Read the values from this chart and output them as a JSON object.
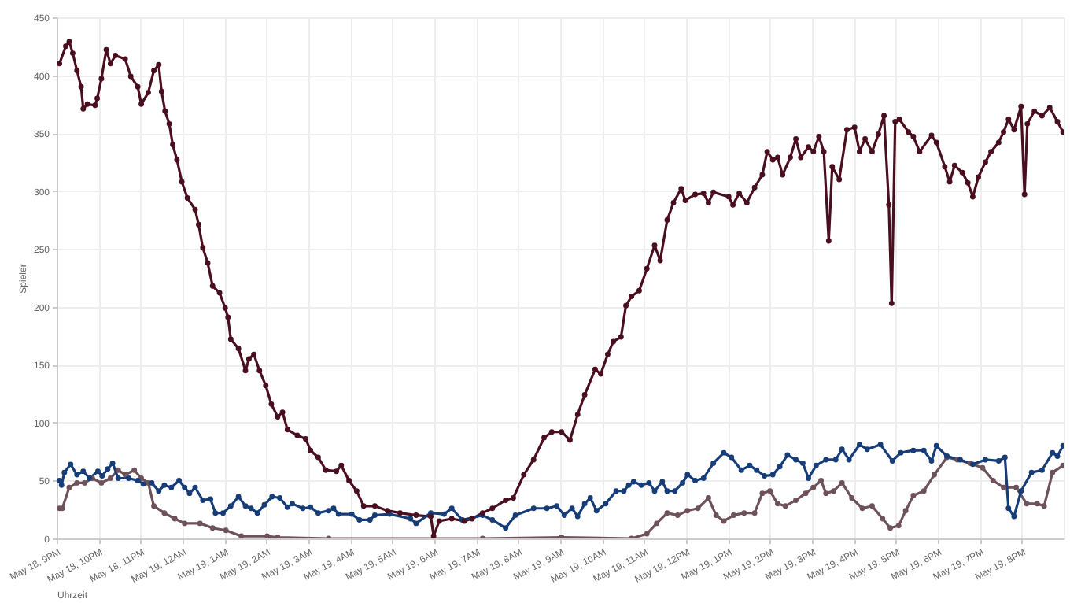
{
  "chart_data": {
    "type": "line",
    "xlabel": "Uhrzeit",
    "ylabel": "Spieler",
    "grid": true,
    "marker": "circle",
    "line_style": "solid",
    "xlim": [
      "--05-18T21:00",
      "--05-19T21:00"
    ],
    "ylim": [
      0,
      450
    ],
    "yticks": [
      0,
      50,
      100,
      150,
      200,
      250,
      300,
      350,
      400,
      450
    ],
    "xticks": [
      {
        "value": "--05-18T21:00",
        "label": "May 18, 9PM"
      },
      {
        "value": "--05-18T22:00",
        "label": "May 18, 10PM"
      },
      {
        "value": "--05-18T23:00",
        "label": "May 18, 11PM"
      },
      {
        "value": "--05-19T00:00",
        "label": "May 19, 12AM"
      },
      {
        "value": "--05-19T01:00",
        "label": "May 19, 1AM"
      },
      {
        "value": "--05-19T02:00",
        "label": "May 19, 2AM"
      },
      {
        "value": "--05-19T03:00",
        "label": "May 19, 3AM"
      },
      {
        "value": "--05-19T04:00",
        "label": "May 19, 4AM"
      },
      {
        "value": "--05-19T05:00",
        "label": "May 19, 5AM"
      },
      {
        "value": "--05-19T06:00",
        "label": "May 19, 6AM"
      },
      {
        "value": "--05-19T07:00",
        "label": "May 19, 7AM"
      },
      {
        "value": "--05-19T08:00",
        "label": "May 19, 8AM"
      },
      {
        "value": "--05-19T09:00",
        "label": "May 19, 9AM"
      },
      {
        "value": "--05-19T10:00",
        "label": "May 19, 10AM"
      },
      {
        "value": "--05-19T11:00",
        "label": "May 19, 11AM"
      },
      {
        "value": "--05-19T12:00",
        "label": "May 19, 12PM"
      },
      {
        "value": "--05-19T13:00",
        "label": "May 19, 1PM"
      },
      {
        "value": "--05-19T14:00",
        "label": "May 19, 2PM"
      },
      {
        "value": "--05-19T15:00",
        "label": "May 19, 3PM"
      },
      {
        "value": "--05-19T16:00",
        "label": "May 19, 4PM"
      },
      {
        "value": "--05-19T17:00",
        "label": "May 19, 5PM"
      },
      {
        "value": "--05-19T18:00",
        "label": "May 19, 6PM"
      },
      {
        "value": "--05-19T19:00",
        "label": "May 19, 7PM"
      },
      {
        "value": "--05-19T20:00",
        "label": "May 19, 8PM"
      }
    ],
    "series": [
      {
        "color": "#4a0f1f",
        "x": [
          "--05-18T21:04",
          "--05-18T21:13",
          "--05-18T21:18",
          "--05-18T21:23",
          "--05-18T21:29",
          "--05-18T21:35",
          "--05-18T21:38",
          "--05-18T21:44",
          "--05-18T21:55",
          "--05-18T21:58",
          "--05-18T22:04",
          "--05-18T22:11",
          "--05-18T22:17",
          "--05-18T22:24",
          "--05-18T22:38",
          "--05-18T22:46",
          "--05-18T22:56",
          "--05-18T23:01",
          "--05-18T23:11",
          "--05-18T23:19",
          "--05-18T23:26",
          "--05-18T23:30",
          "--05-18T23:35",
          "--05-18T23:41",
          "--05-18T23:46",
          "--05-18T23:52",
          "--05-18T23:59",
          "--05-19T00:07",
          "--05-19T00:18",
          "--05-19T00:23",
          "--05-19T00:29",
          "--05-19T00:36",
          "--05-19T00:43",
          "--05-19T00:53",
          "--05-19T01:01",
          "--05-19T01:05",
          "--05-19T01:09",
          "--05-19T01:20",
          "--05-19T01:30",
          "--05-19T01:35",
          "--05-19T01:42",
          "--05-19T01:50",
          "--05-19T01:59",
          "--05-19T02:07",
          "--05-19T02:16",
          "--05-19T02:23",
          "--05-19T02:30",
          "--05-19T02:44",
          "--05-19T02:56",
          "--05-19T03:03",
          "--05-19T03:14",
          "--05-19T03:25",
          "--05-19T03:40",
          "--05-19T03:47",
          "--05-19T03:58",
          "--05-19T04:09",
          "--05-19T04:19",
          "--05-19T04:35",
          "--05-19T04:53",
          "--05-19T05:11",
          "--05-19T05:34",
          "--05-19T05:55",
          "--05-19T05:59",
          "--05-19T06:07",
          "--05-19T06:25",
          "--05-19T06:43",
          "--05-19T06:54",
          "--05-19T07:09",
          "--05-19T07:23",
          "--05-19T07:42",
          "--05-19T07:53",
          "--05-19T08:08",
          "--05-19T08:22",
          "--05-19T08:37",
          "--05-19T08:48",
          "--05-19T09:02",
          "--05-19T09:14",
          "--05-19T09:25",
          "--05-19T09:35",
          "--05-19T09:50",
          "--05-19T09:58",
          "--05-19T10:08",
          "--05-19T10:16",
          "--05-19T10:27",
          "--05-19T10:34",
          "--05-19T10:42",
          "--05-19T10:53",
          "--05-19T11:04",
          "--05-19T11:15",
          "--05-19T11:23",
          "--05-19T11:33",
          "--05-19T11:42",
          "--05-19T11:53",
          "--05-19T11:59",
          "--05-19T12:13",
          "--05-19T12:25",
          "--05-19T12:32",
          "--05-19T12:39",
          "--05-19T13:01",
          "--05-19T13:07",
          "--05-19T13:16",
          "--05-19T13:27",
          "--05-19T13:38",
          "--05-19T13:49",
          "--05-19T13:56",
          "--05-19T14:04",
          "--05-19T14:11",
          "--05-19T14:18",
          "--05-19T14:29",
          "--05-19T14:37",
          "--05-19T14:44",
          "--05-19T14:55",
          "--05-19T15:02",
          "--05-19T15:10",
          "--05-19T15:17",
          "--05-19T15:24",
          "--05-19T15:29",
          "--05-19T15:39",
          "--05-19T15:50",
          "--05-19T16:01",
          "--05-19T16:08",
          "--05-19T16:16",
          "--05-19T16:26",
          "--05-19T16:35",
          "--05-19T16:43",
          "--05-19T16:50",
          "--05-19T16:54",
          "--05-19T16:59",
          "--05-19T17:05",
          "--05-19T17:18",
          "--05-19T17:25",
          "--05-19T17:34",
          "--05-19T17:51",
          "--05-19T17:58",
          "--05-19T18:10",
          "--05-19T18:17",
          "--05-19T18:24",
          "--05-19T18:35",
          "--05-19T18:43",
          "--05-19T18:50",
          "--05-19T18:58",
          "--05-19T19:08",
          "--05-19T19:16",
          "--05-19T19:27",
          "--05-19T19:34",
          "--05-19T19:41",
          "--05-19T19:49",
          "--05-19T19:59",
          "--05-19T20:04",
          "--05-19T20:08",
          "--05-19T20:18",
          "--05-19T20:29",
          "--05-19T20:40",
          "--05-19T20:51",
          "--05-19T20:59"
        ],
        "values": [
          410,
          425,
          429,
          419,
          404,
          390,
          371,
          375,
          374,
          380,
          397,
          422,
          410,
          417,
          414,
          399,
          390,
          375,
          385,
          404,
          409,
          386,
          369,
          358,
          340,
          327,
          308,
          294,
          284,
          271,
          251,
          238,
          218,
          212,
          199,
          191,
          172,
          164,
          145,
          155,
          159,
          145,
          132,
          116,
          105,
          109,
          94,
          89,
          86,
          76,
          70,
          59,
          58,
          63,
          50,
          41,
          28,
          28,
          24,
          22,
          20,
          19,
          2,
          15,
          17,
          15,
          17,
          22,
          26,
          33,
          35,
          55,
          68,
          87,
          92,
          92,
          85,
          107,
          124,
          146,
          142,
          159,
          170,
          174,
          201,
          209,
          214,
          233,
          253,
          240,
          275,
          290,
          302,
          292,
          297,
          298,
          290,
          299,
          295,
          288,
          298,
          290,
          303,
          314,
          334,
          327,
          329,
          314,
          329,
          345,
          329,
          338,
          334,
          347,
          334,
          257,
          321,
          310,
          353,
          355,
          334,
          345,
          334,
          349,
          365,
          288,
          203,
          360,
          362,
          351,
          347,
          334,
          348,
          342,
          321,
          308,
          322,
          316,
          307,
          295,
          312,
          325,
          334,
          342,
          351,
          362,
          353,
          373,
          297,
          358,
          369,
          365,
          372,
          360,
          351
        ]
      },
      {
        "color": "#6e5259",
        "x": [
          "--05-18T21:04",
          "--05-18T21:08",
          "--05-18T21:18",
          "--05-18T21:29",
          "--05-18T21:40",
          "--05-18T21:51",
          "--05-18T22:04",
          "--05-18T22:17",
          "--05-18T22:28",
          "--05-18T22:38",
          "--05-18T22:51",
          "--05-18T23:01",
          "--05-18T23:11",
          "--05-18T23:19",
          "--05-18T23:34",
          "--05-18T23:49",
          "--05-19T00:03",
          "--05-19T00:25",
          "--05-19T00:43",
          "--05-19T01:02",
          "--05-19T01:24",
          "--05-19T02:01",
          "--05-19T02:16",
          "--05-19T03:29",
          "--05-19T07:09",
          "--05-19T09:02",
          "--05-19T10:42",
          "--05-19T11:04",
          "--05-19T11:18",
          "--05-19T11:33",
          "--05-19T11:48",
          "--05-19T12:02",
          "--05-19T12:17",
          "--05-19T12:32",
          "--05-19T12:43",
          "--05-19T12:54",
          "--05-19T13:08",
          "--05-19T13:23",
          "--05-19T13:38",
          "--05-19T13:49",
          "--05-19T14:00",
          "--05-19T14:11",
          "--05-19T14:22",
          "--05-19T14:37",
          "--05-19T14:51",
          "--05-19T15:02",
          "--05-19T15:13",
          "--05-19T15:20",
          "--05-19T15:31",
          "--05-19T15:43",
          "--05-19T15:57",
          "--05-19T16:12",
          "--05-19T16:26",
          "--05-19T16:41",
          "--05-19T16:52",
          "--05-19T17:04",
          "--05-19T17:14",
          "--05-19T17:25",
          "--05-19T17:40",
          "--05-19T17:55",
          "--05-19T18:13",
          "--05-19T18:28",
          "--05-19T18:46",
          "--05-19T19:04",
          "--05-19T19:19",
          "--05-19T19:34",
          "--05-19T19:52",
          "--05-19T20:07",
          "--05-19T20:22",
          "--05-19T20:32",
          "--05-19T20:44",
          "--05-19T20:59"
        ],
        "values": [
          26,
          26,
          44,
          48,
          48,
          52,
          48,
          52,
          59,
          55,
          59,
          52,
          48,
          28,
          22,
          17,
          13,
          13,
          9,
          7,
          2,
          2,
          1,
          0,
          0,
          1,
          0,
          4,
          13,
          22,
          20,
          24,
          26,
          35,
          20,
          15,
          20,
          22,
          22,
          39,
          41,
          30,
          28,
          33,
          39,
          44,
          50,
          39,
          41,
          48,
          35,
          26,
          28,
          17,
          9,
          11,
          24,
          37,
          41,
          55,
          70,
          68,
          65,
          61,
          50,
          44,
          44,
          30,
          30,
          28,
          57,
          63
        ]
      },
      {
        "color": "#173d78",
        "x": [
          "--05-18T21:04",
          "--05-18T21:07",
          "--05-18T21:11",
          "--05-18T21:20",
          "--05-18T21:29",
          "--05-18T21:38",
          "--05-18T21:47",
          "--05-18T21:59",
          "--05-18T22:05",
          "--05-18T22:13",
          "--05-18T22:20",
          "--05-18T22:28",
          "--05-18T22:43",
          "--05-18T22:56",
          "--05-18T23:04",
          "--05-18T23:16",
          "--05-18T23:26",
          "--05-18T23:34",
          "--05-18T23:44",
          "--05-18T23:55",
          "--05-19T00:03",
          "--05-19T00:10",
          "--05-19T00:18",
          "--05-19T00:29",
          "--05-19T00:40",
          "--05-19T00:47",
          "--05-19T00:58",
          "--05-19T01:09",
          "--05-19T01:20",
          "--05-19T01:30",
          "--05-19T01:38",
          "--05-19T01:47",
          "--05-19T01:57",
          "--05-19T02:08",
          "--05-19T02:19",
          "--05-19T02:30",
          "--05-19T02:37",
          "--05-19T02:52",
          "--05-19T03:03",
          "--05-19T03:14",
          "--05-19T03:29",
          "--05-19T03:36",
          "--05-19T03:43",
          "--05-19T04:02",
          "--05-19T04:13",
          "--05-19T04:28",
          "--05-19T04:35",
          "--05-19T04:56",
          "--05-19T05:26",
          "--05-19T05:34",
          "--05-19T05:55",
          "--05-19T06:14",
          "--05-19T06:25",
          "--05-19T06:40",
          "--05-19T07:09",
          "--05-19T07:23",
          "--05-19T07:42",
          "--05-19T07:56",
          "--05-19T08:22",
          "--05-19T08:41",
          "--05-19T08:55",
          "--05-19T09:06",
          "--05-19T09:17",
          "--05-19T09:25",
          "--05-19T09:35",
          "--05-19T09:43",
          "--05-19T09:52",
          "--05-19T10:05",
          "--05-19T10:20",
          "--05-19T10:31",
          "--05-19T10:38",
          "--05-19T10:45",
          "--05-19T10:56",
          "--05-19T11:07",
          "--05-19T11:15",
          "--05-19T11:26",
          "--05-19T11:33",
          "--05-19T11:44",
          "--05-19T11:55",
          "--05-19T12:02",
          "--05-19T12:13",
          "--05-19T12:25",
          "--05-19T12:39",
          "--05-19T12:54",
          "--05-19T13:05",
          "--05-19T13:19",
          "--05-19T13:31",
          "--05-19T13:41",
          "--05-19T13:52",
          "--05-19T14:04",
          "--05-19T14:14",
          "--05-19T14:25",
          "--05-19T14:37",
          "--05-19T14:47",
          "--05-19T14:55",
          "--05-19T15:06",
          "--05-19T15:20",
          "--05-19T15:34",
          "--05-19T15:43",
          "--05-19T15:53",
          "--05-19T16:08",
          "--05-19T16:19",
          "--05-19T16:38",
          "--05-19T16:55",
          "--05-19T17:07",
          "--05-19T17:25",
          "--05-19T17:40",
          "--05-19T17:51",
          "--05-19T17:58",
          "--05-19T18:13",
          "--05-19T18:32",
          "--05-19T18:50",
          "--05-19T19:08",
          "--05-19T19:27",
          "--05-19T19:36",
          "--05-19T19:41",
          "--05-19T19:49",
          "--05-19T19:59",
          "--05-19T20:14",
          "--05-19T20:29",
          "--05-19T20:44",
          "--05-19T20:51",
          "--05-19T20:59"
        ],
        "values": [
          50,
          46,
          57,
          64,
          55,
          58,
          52,
          58,
          54,
          60,
          65,
          52,
          52,
          50,
          47,
          48,
          41,
          46,
          44,
          50,
          44,
          39,
          44,
          33,
          34,
          22,
          22,
          28,
          36,
          28,
          26,
          22,
          29,
          36,
          35,
          27,
          30,
          26,
          27,
          22,
          24,
          26,
          21,
          21,
          16,
          16,
          20,
          21,
          17,
          13,
          22,
          21,
          26,
          16,
          20,
          16,
          9,
          20,
          26,
          26,
          28,
          20,
          26,
          19,
          30,
          35,
          24,
          30,
          41,
          41,
          46,
          49,
          46,
          48,
          41,
          49,
          41,
          41,
          48,
          55,
          50,
          52,
          65,
          74,
          70,
          59,
          63,
          59,
          54,
          55,
          62,
          72,
          68,
          65,
          52,
          63,
          68,
          68,
          77,
          68,
          81,
          77,
          81,
          67,
          74,
          76,
          76,
          67,
          80,
          71,
          68,
          64,
          68,
          67,
          70,
          26,
          19,
          41,
          57,
          59,
          74,
          71,
          80
        ]
      }
    ]
  }
}
